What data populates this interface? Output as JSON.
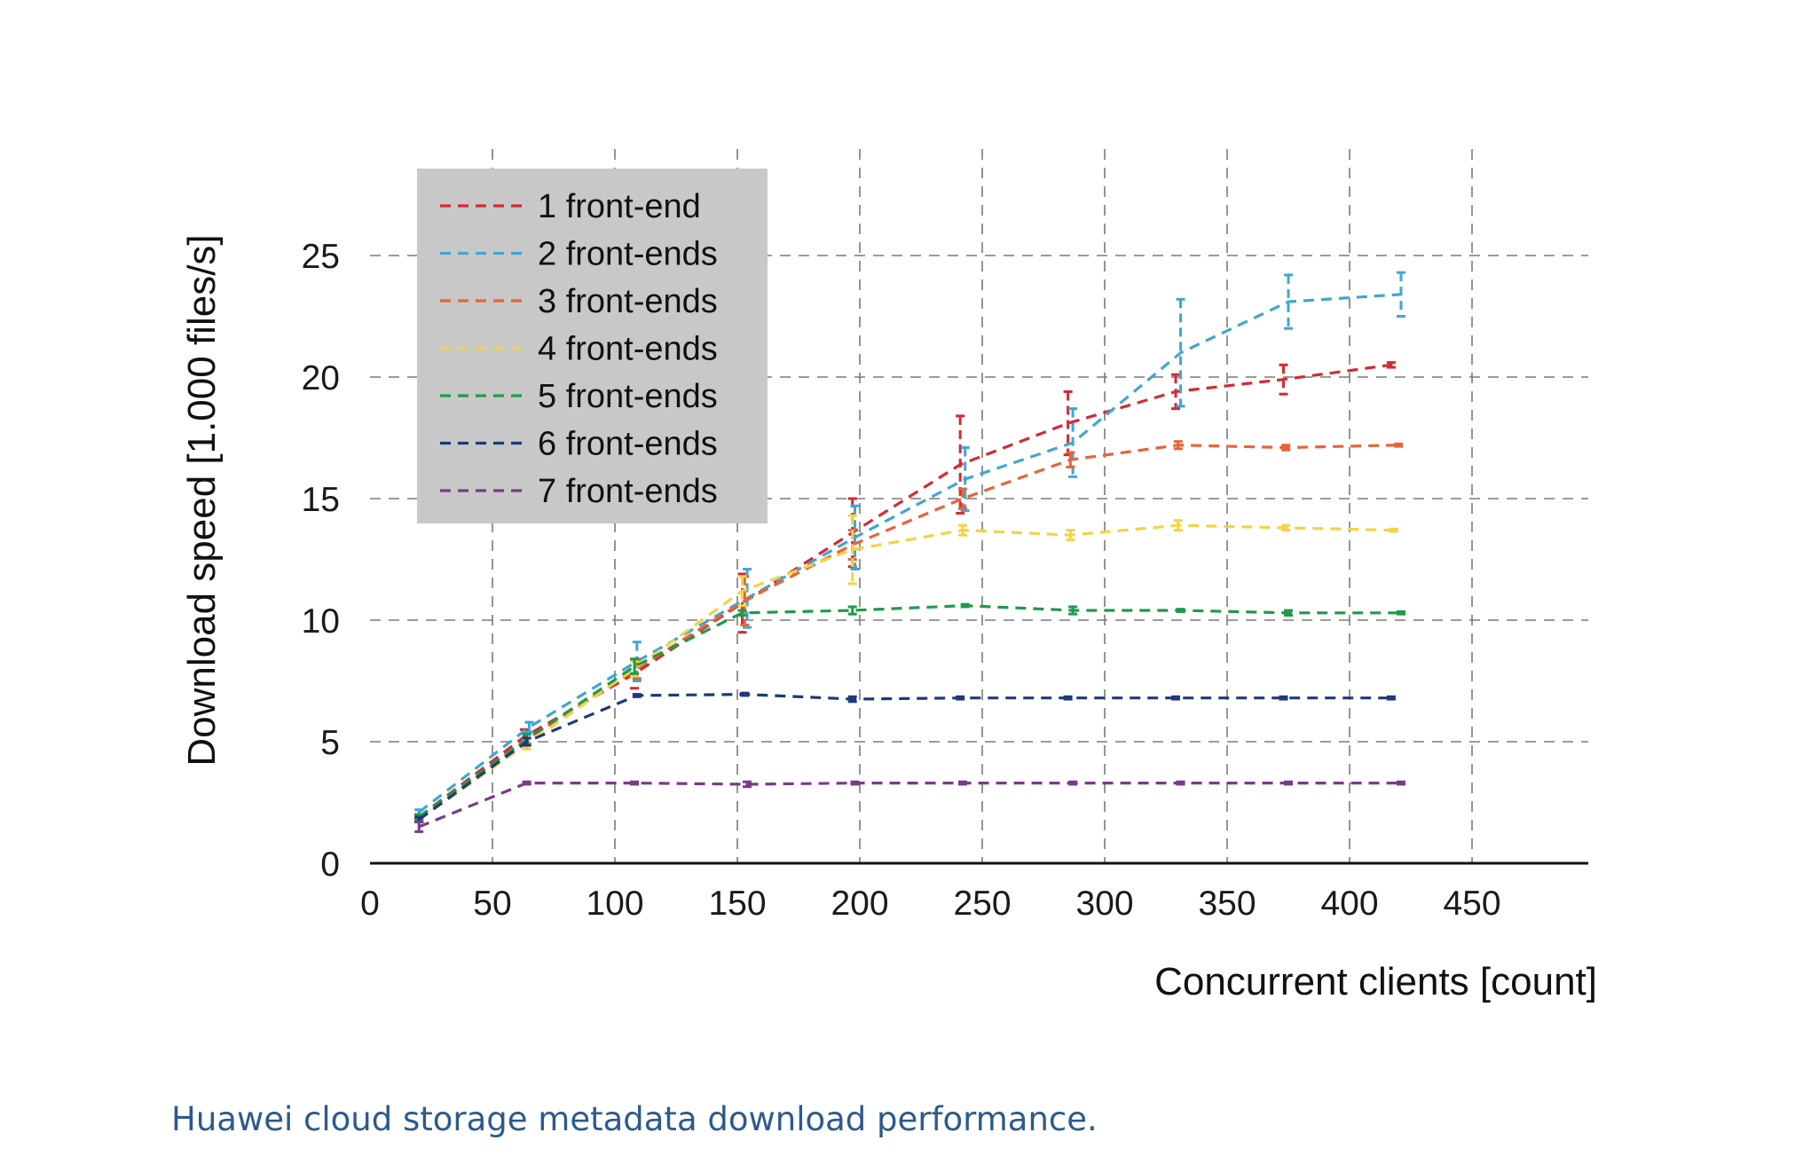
{
  "chart_data": {
    "type": "line",
    "title": "",
    "xlabel": "Concurrent clients [count]",
    "ylabel": "Download speed [1.000 files/s]",
    "xlim": [
      0,
      500
    ],
    "ylim": [
      0,
      29
    ],
    "x_ticks": [
      0,
      50,
      100,
      150,
      200,
      250,
      300,
      350,
      400,
      450
    ],
    "y_ticks": [
      0,
      5,
      10,
      15,
      20,
      25
    ],
    "grid": true,
    "grid_style": "dashed",
    "legend_position": "top-left",
    "line_style": "dashed",
    "error_bars": true,
    "series": [
      {
        "name": "1 front-end",
        "color": "#d42a32",
        "points": [
          {
            "x": 20,
            "y": 1.9,
            "err": 0.1
          },
          {
            "x": 63,
            "y": 5.2,
            "err": 0.3
          },
          {
            "x": 108,
            "y": 7.8,
            "err": 0.6
          },
          {
            "x": 152,
            "y": 10.7,
            "err": 1.2
          },
          {
            "x": 197,
            "y": 13.6,
            "err": 1.4
          },
          {
            "x": 241,
            "y": 16.4,
            "err": 2.0
          },
          {
            "x": 285,
            "y": 18.1,
            "err": 1.3
          },
          {
            "x": 329,
            "y": 19.4,
            "err": 0.7
          },
          {
            "x": 373,
            "y": 19.9,
            "err": 0.6
          },
          {
            "x": 417,
            "y": 20.5,
            "err": 0.1
          }
        ]
      },
      {
        "name": "2 front-ends",
        "color": "#3fa7d2",
        "points": [
          {
            "x": 20,
            "y": 2.1,
            "err": 0.1
          },
          {
            "x": 65,
            "y": 5.6,
            "err": 0.2
          },
          {
            "x": 109,
            "y": 8.3,
            "err": 0.8
          },
          {
            "x": 154,
            "y": 10.9,
            "err": 1.2
          },
          {
            "x": 198,
            "y": 13.4,
            "err": 1.3
          },
          {
            "x": 243,
            "y": 15.8,
            "err": 1.3
          },
          {
            "x": 287,
            "y": 17.3,
            "err": 1.4
          },
          {
            "x": 331,
            "y": 21.0,
            "err": 2.2
          },
          {
            "x": 375,
            "y": 23.1,
            "err": 1.1
          },
          {
            "x": 421,
            "y": 23.4,
            "err": 0.9
          }
        ]
      },
      {
        "name": "3 front-ends",
        "color": "#e8633a",
        "points": [
          {
            "x": 20,
            "y": 1.8,
            "err": 0.1
          },
          {
            "x": 64,
            "y": 5.1,
            "err": 0.2
          },
          {
            "x": 109,
            "y": 8.0,
            "err": 0.4
          },
          {
            "x": 153,
            "y": 10.8,
            "err": 1.0
          },
          {
            "x": 197,
            "y": 13.1,
            "err": 0.6
          },
          {
            "x": 242,
            "y": 15.0,
            "err": 0.4
          },
          {
            "x": 286,
            "y": 16.6,
            "err": 0.3
          },
          {
            "x": 330,
            "y": 17.2,
            "err": 0.15
          },
          {
            "x": 374,
            "y": 17.1,
            "err": 0.1
          },
          {
            "x": 420,
            "y": 17.2,
            "err": 0.05
          }
        ]
      },
      {
        "name": "4 front-ends",
        "color": "#f5d245",
        "points": [
          {
            "x": 20,
            "y": 1.8,
            "err": 0.1
          },
          {
            "x": 64,
            "y": 4.9,
            "err": 0.2
          },
          {
            "x": 108,
            "y": 8.0,
            "err": 0.3
          },
          {
            "x": 152,
            "y": 11.2,
            "err": 0.6
          },
          {
            "x": 197,
            "y": 12.9,
            "err": 1.4
          },
          {
            "x": 242,
            "y": 13.7,
            "err": 0.2
          },
          {
            "x": 286,
            "y": 13.5,
            "err": 0.2
          },
          {
            "x": 330,
            "y": 13.9,
            "err": 0.2
          },
          {
            "x": 374,
            "y": 13.8,
            "err": 0.1
          },
          {
            "x": 418,
            "y": 13.7,
            "err": 0.05
          }
        ]
      },
      {
        "name": "5 front-ends",
        "color": "#1f9a4a",
        "points": [
          {
            "x": 20,
            "y": 1.9,
            "err": 0.1
          },
          {
            "x": 64,
            "y": 5.1,
            "err": 0.2
          },
          {
            "x": 108,
            "y": 8.1,
            "err": 0.3
          },
          {
            "x": 152,
            "y": 10.3,
            "err": 0.1
          },
          {
            "x": 197,
            "y": 10.4,
            "err": 0.15
          },
          {
            "x": 243,
            "y": 10.6,
            "err": 0.05
          },
          {
            "x": 287,
            "y": 10.4,
            "err": 0.15
          },
          {
            "x": 331,
            "y": 10.4,
            "err": 0.05
          },
          {
            "x": 375,
            "y": 10.3,
            "err": 0.1
          },
          {
            "x": 421,
            "y": 10.3,
            "err": 0.05
          }
        ]
      },
      {
        "name": "6 front-ends",
        "color": "#1f3a78",
        "points": [
          {
            "x": 20,
            "y": 1.8,
            "err": 0.1
          },
          {
            "x": 64,
            "y": 5.0,
            "err": 0.15
          },
          {
            "x": 109,
            "y": 6.9,
            "err": 0.05
          },
          {
            "x": 153,
            "y": 6.95,
            "err": 0.05
          },
          {
            "x": 197,
            "y": 6.75,
            "err": 0.1
          },
          {
            "x": 241,
            "y": 6.8,
            "err": 0.05
          },
          {
            "x": 285,
            "y": 6.8,
            "err": 0.05
          },
          {
            "x": 329,
            "y": 6.8,
            "err": 0.05
          },
          {
            "x": 373,
            "y": 6.8,
            "err": 0.05
          },
          {
            "x": 417,
            "y": 6.8,
            "err": 0.05
          }
        ]
      },
      {
        "name": "7 front-ends",
        "color": "#7a3a8a",
        "points": [
          {
            "x": 20,
            "y": 1.5,
            "err": 0.2
          },
          {
            "x": 64,
            "y": 3.3,
            "err": 0.05
          },
          {
            "x": 108,
            "y": 3.3,
            "err": 0.05
          },
          {
            "x": 154,
            "y": 3.25,
            "err": 0.1
          },
          {
            "x": 198,
            "y": 3.3,
            "err": 0.05
          },
          {
            "x": 242,
            "y": 3.3,
            "err": 0.05
          },
          {
            "x": 287,
            "y": 3.3,
            "err": 0.05
          },
          {
            "x": 331,
            "y": 3.3,
            "err": 0.05
          },
          {
            "x": 375,
            "y": 3.3,
            "err": 0.05
          },
          {
            "x": 421,
            "y": 3.3,
            "err": 0.05
          }
        ]
      }
    ]
  },
  "caption": "Huawei cloud storage metadata download performance."
}
